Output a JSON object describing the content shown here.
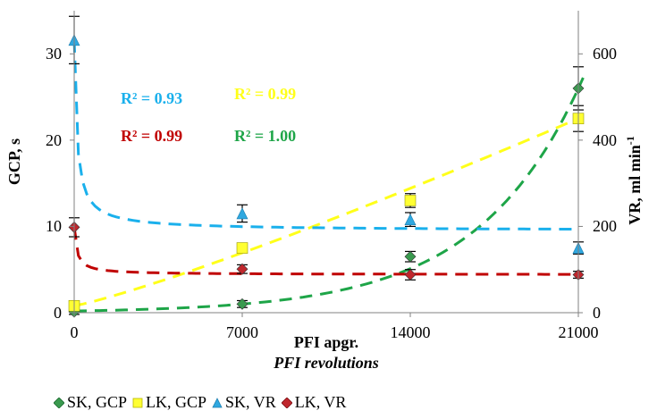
{
  "chart_data": {
    "type": "scatter",
    "x": [
      0,
      7000,
      14000,
      21000
    ],
    "xlabel": "PFI apgr.",
    "xlabel_sub": "PFI revolutions",
    "xticks": [
      "0",
      "7000",
      "14000",
      "21000"
    ],
    "xlim": [
      0,
      21000
    ],
    "ylabel_left": "GCP, s",
    "ylim_left": [
      0,
      35
    ],
    "yticks_left": [
      "0",
      "10",
      "20",
      "30"
    ],
    "ylabel_right": "VR, ml min",
    "ylabel_right_sup": "-1",
    "ylim_right": [
      0,
      700
    ],
    "yticks_right": [
      "0",
      "200",
      "400",
      "600"
    ],
    "grid": false,
    "legend_position": "bottom",
    "series": [
      {
        "name": "SK, GCP",
        "axis": "left",
        "values": [
          0.1,
          1.0,
          6.5,
          26.0
        ],
        "err": [
          0.3,
          0.4,
          0.6,
          2.5
        ],
        "color": "#3a9a4f",
        "marker": "diamond",
        "trend_color": "#1ea548",
        "r2": "R² = 1.00"
      },
      {
        "name": "LK, GCP",
        "axis": "left",
        "values": [
          0.8,
          7.5,
          13.0,
          22.5
        ],
        "err": [
          0.3,
          0.5,
          0.8,
          1.5
        ],
        "color": "#ffff33",
        "marker": "square",
        "trend_color": "#ffff1a",
        "r2": "R² = 0.99"
      },
      {
        "name": "SK, VR",
        "axis": "right",
        "values": [
          632,
          230,
          216,
          150
        ],
        "err": [
          55,
          20,
          16,
          14
        ],
        "color": "#2fa8e0",
        "marker": "triangle",
        "trend_color": "#1ab0ec",
        "r2": "R² = 0.93"
      },
      {
        "name": "LK, VR",
        "axis": "right",
        "values": [
          198,
          101,
          88,
          88
        ],
        "err": [
          22,
          10,
          12,
          8
        ],
        "color": "#c0272d",
        "marker": "diamond",
        "trend_color": "#c00000",
        "r2": "R² = 0.99"
      }
    ]
  }
}
